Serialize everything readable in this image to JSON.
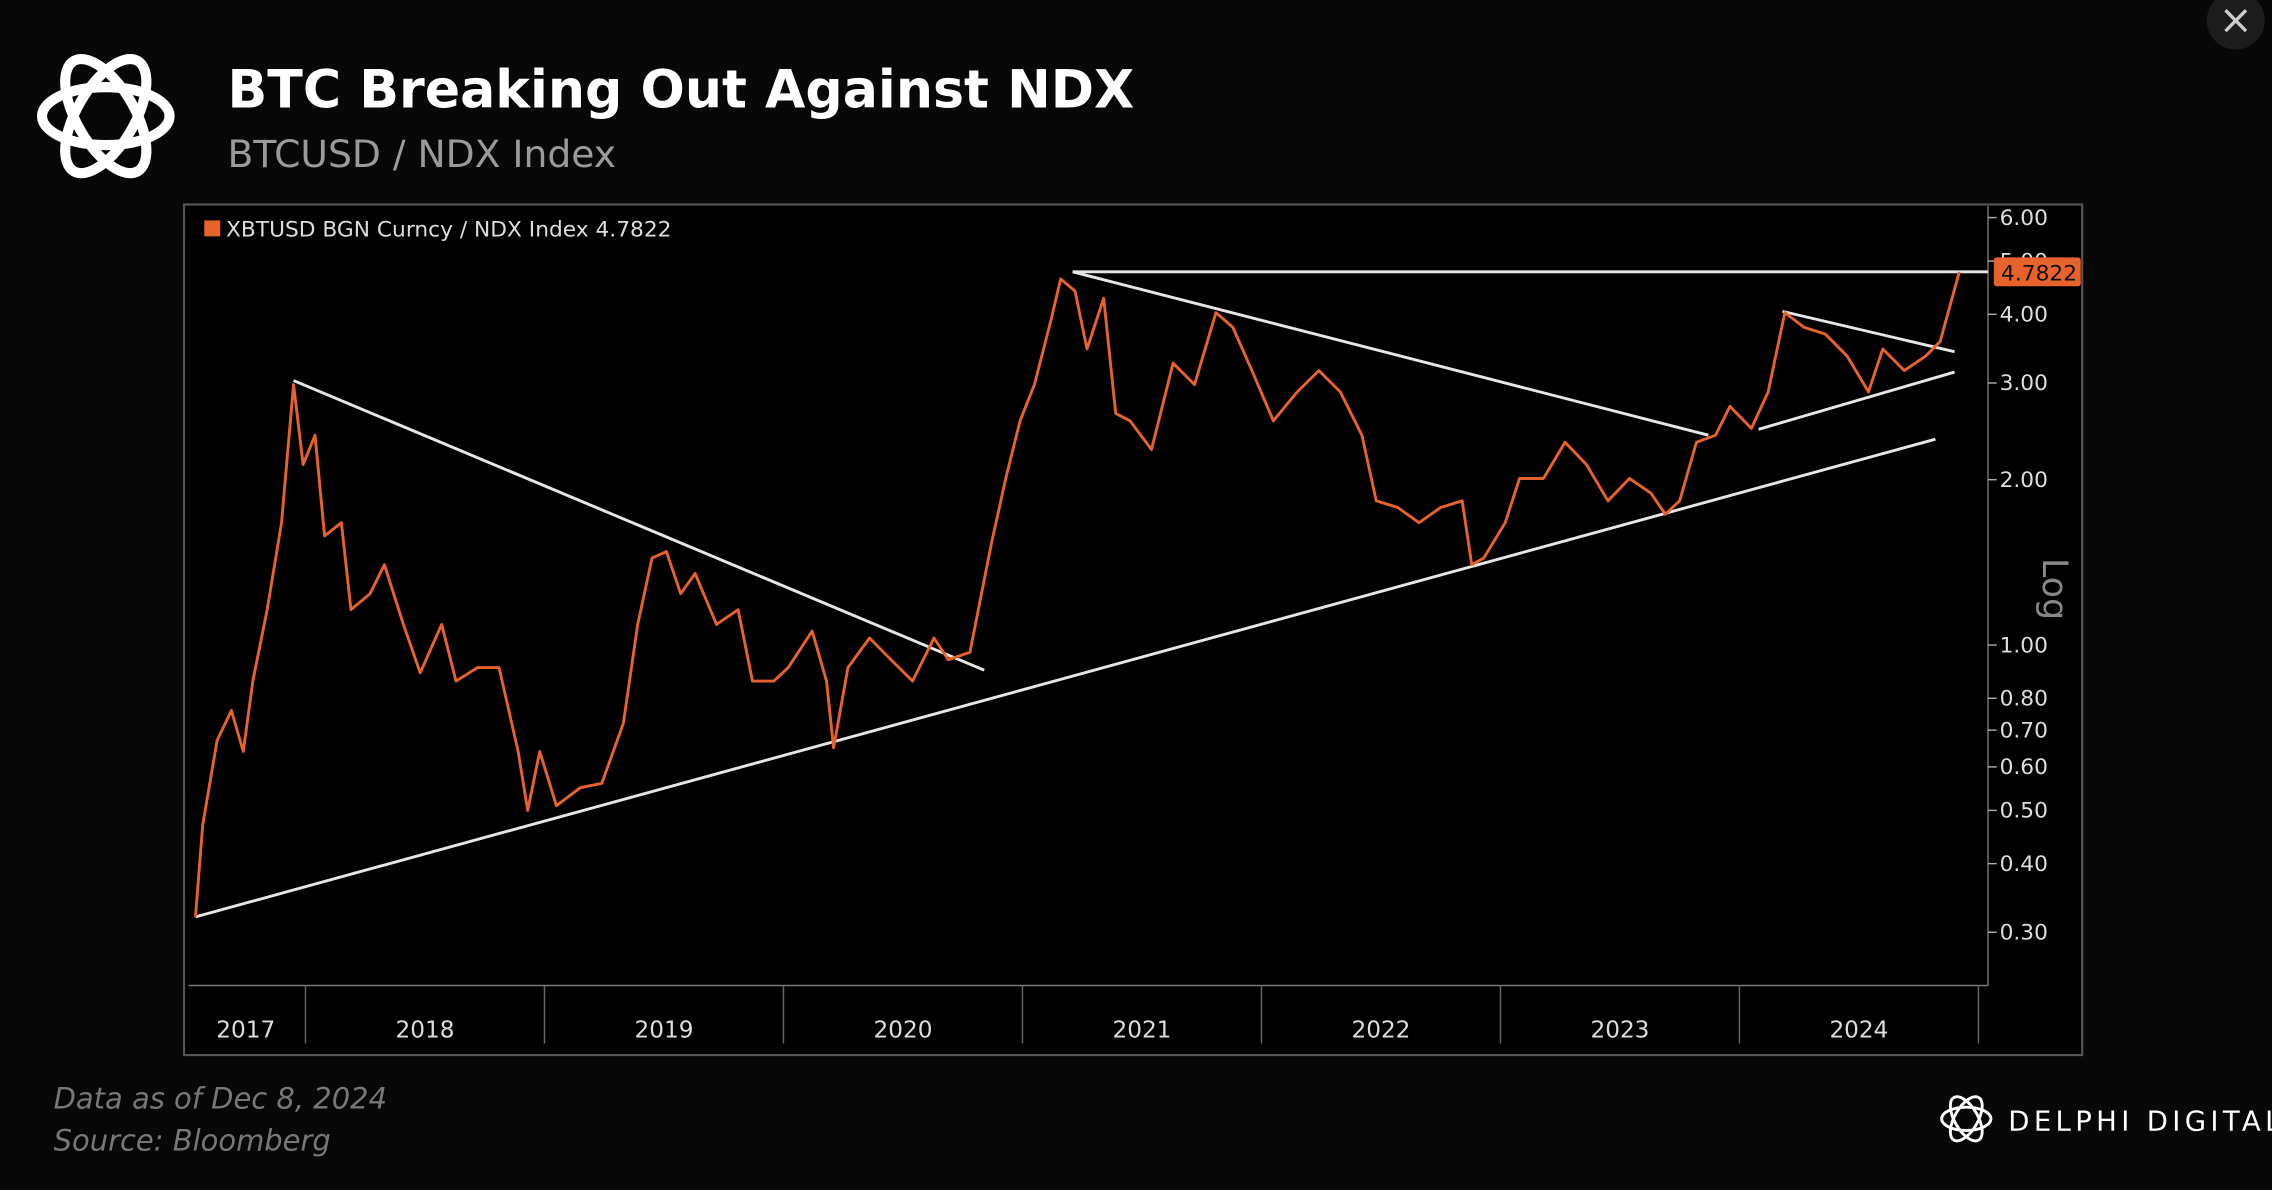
{
  "chart_data": {
    "type": "line",
    "title": "BTC Breaking Out Against NDX",
    "subtitle": "BTCUSD / NDX Index",
    "footnote": "Data as of Dec 8, 2024",
    "source": "Source: Bloomberg",
    "brand": "DELPHI DIGITAL",
    "close_icon": "×",
    "y_scale_label": "Log",
    "log_scale": true,
    "xlim": [
      2017.51,
      2025.04
    ],
    "ylim": [
      0.24,
      6.3
    ],
    "xticks": [
      {
        "value": 2017.75,
        "label": "2017"
      },
      {
        "value": 2018.5,
        "label": "2018"
      },
      {
        "value": 2019.5,
        "label": "2019"
      },
      {
        "value": 2020.5,
        "label": "2020"
      },
      {
        "value": 2021.5,
        "label": "2021"
      },
      {
        "value": 2022.5,
        "label": "2022"
      },
      {
        "value": 2023.5,
        "label": "2023"
      },
      {
        "value": 2024.5,
        "label": "2024"
      }
    ],
    "xtick_marks": [
      2018,
      2019,
      2020,
      2021,
      2022,
      2023,
      2024,
      2025
    ],
    "yticks": [
      {
        "value": 6,
        "label": "6.00"
      },
      {
        "value": 5,
        "label": "5.00"
      },
      {
        "value": 4,
        "label": "4.00"
      },
      {
        "value": 3,
        "label": "3.00"
      },
      {
        "value": 2,
        "label": "2.00"
      },
      {
        "value": 1,
        "label": "1.00"
      },
      {
        "value": 0.8,
        "label": "0.80"
      },
      {
        "value": 0.7,
        "label": "0.70"
      },
      {
        "value": 0.6,
        "label": "0.60"
      },
      {
        "value": 0.5,
        "label": "0.50"
      },
      {
        "value": 0.4,
        "label": "0.40"
      },
      {
        "value": 0.3,
        "label": "0.30"
      }
    ],
    "series": [
      {
        "name": "XBTUSD BGN Curncy / NDX Index 4.7822",
        "color": "#e8622c",
        "last_label": "4.7822",
        "x": [
          2017.54,
          2017.57,
          2017.63,
          2017.69,
          2017.74,
          2017.78,
          2017.84,
          2017.9,
          2017.95,
          2017.99,
          2018.04,
          2018.08,
          2018.15,
          2018.19,
          2018.27,
          2018.33,
          2018.41,
          2018.48,
          2018.57,
          2018.63,
          2018.72,
          2018.81,
          2018.89,
          2018.93,
          2018.98,
          2019.05,
          2019.15,
          2019.24,
          2019.33,
          2019.39,
          2019.45,
          2019.51,
          2019.57,
          2019.63,
          2019.72,
          2019.81,
          2019.87,
          2019.96,
          2020.02,
          2020.12,
          2020.18,
          2020.21,
          2020.27,
          2020.36,
          2020.45,
          2020.54,
          2020.63,
          2020.69,
          2020.78,
          2020.87,
          2020.93,
          2020.99,
          2021.05,
          2021.12,
          2021.16,
          2021.22,
          2021.27,
          2021.34,
          2021.39,
          2021.45,
          2021.54,
          2021.63,
          2021.72,
          2021.81,
          2021.88,
          2021.96,
          2022.05,
          2022.15,
          2022.24,
          2022.33,
          2022.42,
          2022.48,
          2022.57,
          2022.66,
          2022.75,
          2022.84,
          2022.88,
          2022.93,
          2023.02,
          2023.08,
          2023.18,
          2023.27,
          2023.36,
          2023.45,
          2023.54,
          2023.63,
          2023.69,
          2023.75,
          2023.82,
          2023.9,
          2023.96,
          2024.05,
          2024.12,
          2024.19,
          2024.27,
          2024.36,
          2024.45,
          2024.54,
          2024.6,
          2024.69,
          2024.78,
          2024.84,
          2024.92
        ],
        "values": [
          0.32,
          0.47,
          0.67,
          0.76,
          0.64,
          0.86,
          1.16,
          1.67,
          2.98,
          2.13,
          2.41,
          1.58,
          1.67,
          1.16,
          1.24,
          1.4,
          1.09,
          0.89,
          1.09,
          0.86,
          0.91,
          0.91,
          0.64,
          0.5,
          0.64,
          0.51,
          0.55,
          0.56,
          0.72,
          1.09,
          1.44,
          1.48,
          1.24,
          1.35,
          1.09,
          1.16,
          0.86,
          0.86,
          0.91,
          1.06,
          0.86,
          0.65,
          0.91,
          1.03,
          0.94,
          0.86,
          1.03,
          0.94,
          0.97,
          1.53,
          2.01,
          2.56,
          2.98,
          3.91,
          4.64,
          4.41,
          3.46,
          4.28,
          2.64,
          2.56,
          2.27,
          3.26,
          2.98,
          4.03,
          3.79,
          3.16,
          2.56,
          2.89,
          3.16,
          2.89,
          2.41,
          1.83,
          1.78,
          1.67,
          1.78,
          1.83,
          1.4,
          1.44,
          1.67,
          2.01,
          2.01,
          2.34,
          2.13,
          1.83,
          2.01,
          1.89,
          1.73,
          1.83,
          2.34,
          2.41,
          2.72,
          2.48,
          2.89,
          4.03,
          3.79,
          3.68,
          3.36,
          2.89,
          3.46,
          3.16,
          3.36,
          3.57,
          4.78
        ]
      }
    ],
    "trendline_color": "#e6e6e6",
    "trendlines": [
      {
        "x": [
          2017.95,
          2020.84
        ],
        "values": [
          3.03,
          0.9
        ]
      },
      {
        "x": [
          2017.54,
          2024.82
        ],
        "values": [
          0.32,
          2.37
        ]
      },
      {
        "x": [
          2021.21,
          2025.04
        ],
        "values": [
          4.78,
          4.78
        ]
      },
      {
        "x": [
          2021.21,
          2023.87
        ],
        "values": [
          4.78,
          2.41
        ]
      },
      {
        "x": [
          2024.18,
          2024.9
        ],
        "values": [
          4.05,
          3.42
        ]
      },
      {
        "x": [
          2024.08,
          2024.9
        ],
        "values": [
          2.47,
          3.14
        ]
      }
    ]
  }
}
